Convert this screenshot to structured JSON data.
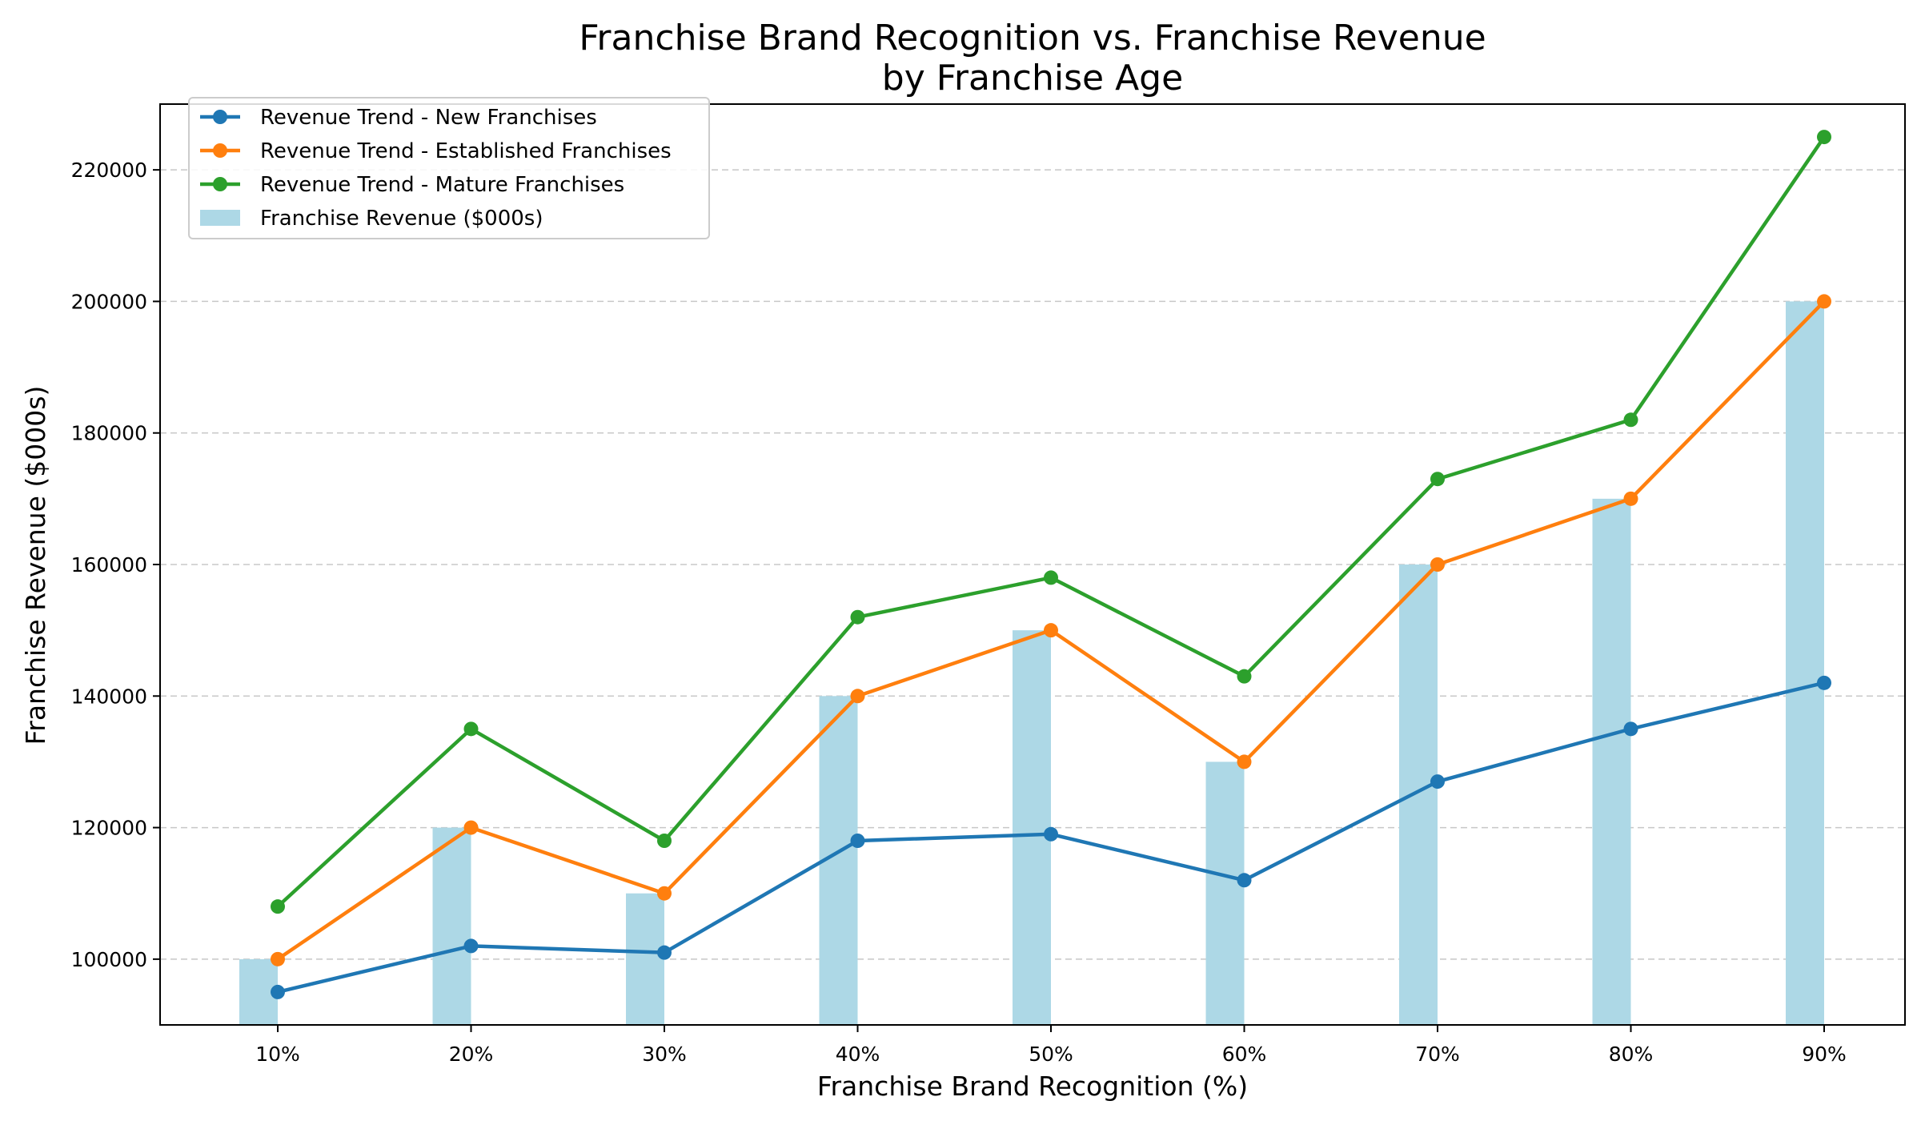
{
  "chart_data": {
    "type": "bar+line",
    "title": "Franchise Brand Recognition vs. Franchise Revenue",
    "subtitle": "by Franchise Age",
    "xlabel": "Franchise Brand Recognition (%)",
    "ylabel": "Franchise Revenue ($000s)",
    "categories": [
      "10%",
      "20%",
      "30%",
      "40%",
      "50%",
      "60%",
      "70%",
      "80%",
      "90%"
    ],
    "ylim": [
      90000,
      230000
    ],
    "yticks": [
      100000,
      120000,
      140000,
      160000,
      180000,
      200000,
      220000
    ],
    "grid": "y-dashed",
    "legend_position": "top-left",
    "bars": {
      "name": "Franchise Revenue ($000s)",
      "color": "#add8e6",
      "values": [
        100000,
        120000,
        110000,
        140000,
        150000,
        130000,
        160000,
        170000,
        200000
      ]
    },
    "series": [
      {
        "name": "Revenue Trend - New Franchises",
        "color": "#1f77b4",
        "values": [
          95000,
          102000,
          101000,
          118000,
          119000,
          112000,
          127000,
          135000,
          142000
        ]
      },
      {
        "name": "Revenue Trend - Established Franchises",
        "color": "#ff7f0e",
        "values": [
          100000,
          120000,
          110000,
          140000,
          150000,
          130000,
          160000,
          170000,
          200000
        ]
      },
      {
        "name": "Revenue Trend - Mature Franchises",
        "color": "#2ca02c",
        "values": [
          108000,
          135000,
          118000,
          152000,
          158000,
          143000,
          173000,
          182000,
          225000
        ]
      }
    ]
  }
}
